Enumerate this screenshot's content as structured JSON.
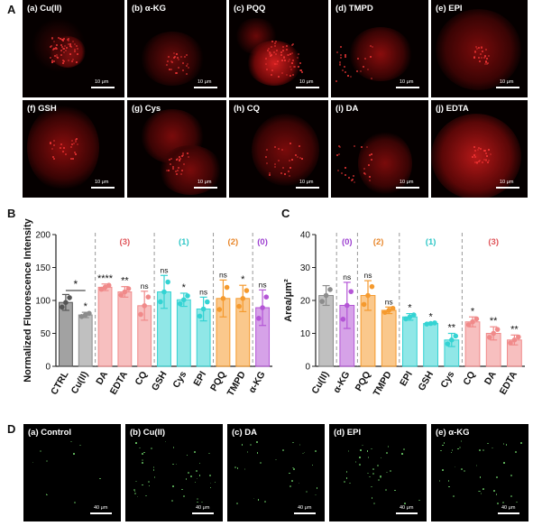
{
  "panel_letters": {
    "a": "A",
    "b": "B",
    "c": "C",
    "d": "D"
  },
  "row_a": [
    {
      "label": "(a) Cu(II)",
      "scale": "10 μm"
    },
    {
      "label": "(b) α-KG",
      "scale": "10 μm"
    },
    {
      "label": "(c) PQQ",
      "scale": "10 μm"
    },
    {
      "label": "(d) TMPD",
      "scale": "10 μm"
    },
    {
      "label": "(e) EPI",
      "scale": "10 μm"
    },
    {
      "label": "(f) GSH",
      "scale": "10 μm"
    },
    {
      "label": "(g) Cys",
      "scale": "10 μm"
    },
    {
      "label": "(h) CQ",
      "scale": "10 μm"
    },
    {
      "label": "(i) DA",
      "scale": "10 μm"
    },
    {
      "label": "(j) EDTA",
      "scale": "10 μm"
    }
  ],
  "row_d": [
    {
      "label": "(a) Control",
      "scale": "40 μm"
    },
    {
      "label": "(b) Cu(II)",
      "scale": "40 μm"
    },
    {
      "label": "(c) DA",
      "scale": "40 μm"
    },
    {
      "label": "(d) EPI",
      "scale": "40 μm"
    },
    {
      "label": "(e) α-KG",
      "scale": "40 μm"
    }
  ],
  "colors": {
    "dark": "#555555",
    "gray": "#8c8c8c",
    "red": "#f08a8a",
    "cyan": "#34d3d3",
    "orange": "#f59a2e",
    "purple": "#b455d6",
    "group_red": "#e0555a",
    "group_cyan": "#2cc6c6",
    "group_orange": "#e8862a",
    "group_purple": "#9c3fd0"
  },
  "chart_data": [
    {
      "type": "bar",
      "ylabel": "Normalized Fluorescence Intensity",
      "ylim": [
        0,
        200
      ],
      "yticks": [
        0,
        50,
        100,
        150,
        200
      ],
      "categories": [
        "CTRL",
        "Cu(II)",
        "DA",
        "EDTA",
        "CQ",
        "GSH",
        "Cys",
        "EPI",
        "PQQ",
        "TMPD",
        "α-KG"
      ],
      "values": [
        97,
        78,
        120,
        113,
        92,
        113,
        101,
        87,
        103,
        103,
        89
      ],
      "errors": [
        12,
        4,
        5,
        8,
        22,
        25,
        10,
        18,
        28,
        20,
        27
      ],
      "significance": [
        "",
        "*",
        "****",
        "**",
        "ns",
        "ns",
        "*",
        "ns",
        "ns",
        "*",
        "ns"
      ],
      "series_colors": [
        "dark",
        "gray",
        "red",
        "red",
        "red",
        "cyan",
        "cyan",
        "cyan",
        "orange",
        "orange",
        "purple"
      ],
      "groups": [
        {
          "label": "(3)",
          "color": "group_red",
          "start": 2,
          "end": 4
        },
        {
          "label": "(1)",
          "color": "group_cyan",
          "start": 5,
          "end": 7
        },
        {
          "label": "(2)",
          "color": "group_orange",
          "start": 8,
          "end": 9
        },
        {
          "label": "(0)",
          "color": "group_purple",
          "start": 10,
          "end": 10
        }
      ],
      "bracket_star": "*"
    },
    {
      "type": "bar",
      "ylabel": "Area/μm²",
      "ylim": [
        0,
        40
      ],
      "yticks": [
        0,
        10,
        20,
        30,
        40
      ],
      "categories": [
        "Cu(II)",
        "α-KG",
        "PQQ",
        "TMPD",
        "EPI",
        "GSH",
        "Cys",
        "CQ",
        "DA",
        "EDTA"
      ],
      "values": [
        21.5,
        18.5,
        21.5,
        17,
        15,
        13,
        8,
        13.5,
        10,
        8
      ],
      "errors": [
        3,
        7,
        4.5,
        1,
        1,
        0.3,
        2,
        1.5,
        2,
        1.5
      ],
      "significance": [
        "",
        "ns",
        "ns",
        "ns",
        "*",
        "*",
        "**",
        "*",
        "**",
        "**"
      ],
      "series_colors": [
        "gray",
        "purple",
        "orange",
        "orange",
        "cyan",
        "cyan",
        "cyan",
        "red",
        "red",
        "red"
      ],
      "groups": [
        {
          "label": "(0)",
          "color": "group_purple",
          "start": 1,
          "end": 1
        },
        {
          "label": "(2)",
          "color": "group_orange",
          "start": 2,
          "end": 3
        },
        {
          "label": "(1)",
          "color": "group_cyan",
          "start": 4,
          "end": 6
        },
        {
          "label": "(3)",
          "color": "group_red",
          "start": 7,
          "end": 9
        }
      ]
    }
  ]
}
